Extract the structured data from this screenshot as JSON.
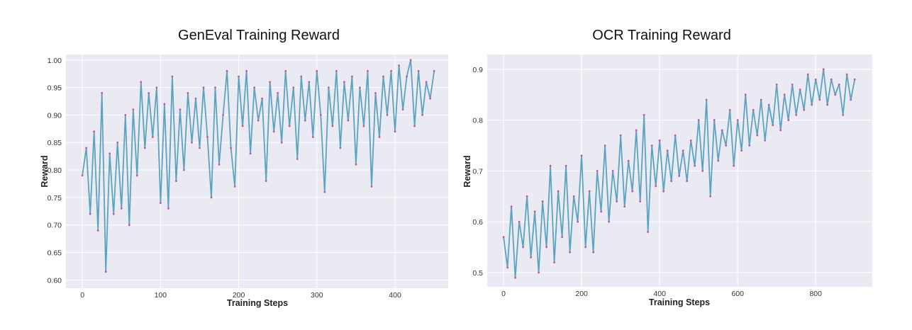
{
  "chart_data": [
    {
      "type": "line",
      "title": "GenEval Training Reward",
      "xlabel": "Training Steps",
      "ylabel": "Reward",
      "xlim": [
        -21,
        468
      ],
      "ylim": [
        0.585,
        1.01
      ],
      "grid": true,
      "xticks": [
        0,
        100,
        200,
        300,
        400
      ],
      "yticks": [
        0.6,
        0.65,
        0.7,
        0.75,
        0.8,
        0.85,
        0.9,
        0.95,
        1.0
      ],
      "ytick_labels": [
        "0.60",
        "0.65",
        "0.70",
        "0.75",
        "0.80",
        "0.85",
        "0.90",
        "0.95",
        "1.00"
      ],
      "line_color": "#5ba3c0",
      "marker_color": "#d0509c",
      "background": "#eaeaf2",
      "x": [
        0,
        5,
        10,
        15,
        20,
        25,
        30,
        35,
        40,
        45,
        50,
        55,
        60,
        65,
        70,
        75,
        80,
        85,
        90,
        95,
        100,
        105,
        110,
        115,
        120,
        125,
        130,
        135,
        140,
        145,
        150,
        155,
        160,
        165,
        170,
        175,
        180,
        185,
        190,
        195,
        200,
        205,
        210,
        215,
        220,
        225,
        230,
        235,
        240,
        245,
        250,
        255,
        260,
        265,
        270,
        275,
        280,
        285,
        290,
        295,
        300,
        305,
        310,
        315,
        320,
        325,
        330,
        335,
        340,
        345,
        350,
        355,
        360,
        365,
        370,
        375,
        380,
        385,
        390,
        395,
        400,
        405,
        410,
        415,
        420,
        425,
        430,
        435,
        440,
        445,
        450
      ],
      "values": [
        0.79,
        0.84,
        0.72,
        0.87,
        0.69,
        0.94,
        0.615,
        0.83,
        0.72,
        0.85,
        0.73,
        0.9,
        0.7,
        0.91,
        0.79,
        0.96,
        0.84,
        0.94,
        0.86,
        0.95,
        0.74,
        0.92,
        0.73,
        0.97,
        0.78,
        0.91,
        0.8,
        0.94,
        0.85,
        0.93,
        0.84,
        0.95,
        0.86,
        0.75,
        0.95,
        0.81,
        0.9,
        0.98,
        0.84,
        0.77,
        0.97,
        0.88,
        0.98,
        0.83,
        0.95,
        0.89,
        0.93,
        0.78,
        0.96,
        0.87,
        0.94,
        0.85,
        0.98,
        0.88,
        0.95,
        0.82,
        0.97,
        0.89,
        0.96,
        0.86,
        0.98,
        0.9,
        0.76,
        0.95,
        0.88,
        0.98,
        0.84,
        0.96,
        0.89,
        0.97,
        0.81,
        0.95,
        0.88,
        0.98,
        0.77,
        0.94,
        0.86,
        0.97,
        0.9,
        0.98,
        0.87,
        0.99,
        0.91,
        0.97,
        1.0,
        0.88,
        0.98,
        0.9,
        0.96,
        0.93,
        0.98
      ]
    },
    {
      "type": "line",
      "title": "OCR Training Reward",
      "xlabel": "Training Steps",
      "ylabel": "Reward",
      "xlim": [
        -42,
        945
      ],
      "ylim": [
        0.472,
        0.929
      ],
      "grid": true,
      "xticks": [
        0,
        200,
        400,
        600,
        800
      ],
      "yticks": [
        0.5,
        0.6,
        0.7,
        0.8,
        0.9
      ],
      "ytick_labels": [
        "0.5",
        "0.6",
        "0.7",
        "0.8",
        "0.9"
      ],
      "line_color": "#5ba3c0",
      "marker_color": "#d0509c",
      "background": "#eaeaf2",
      "x": [
        0,
        10,
        20,
        30,
        40,
        50,
        60,
        70,
        80,
        90,
        100,
        110,
        120,
        130,
        140,
        150,
        160,
        170,
        180,
        190,
        200,
        210,
        220,
        230,
        240,
        250,
        260,
        270,
        280,
        290,
        300,
        310,
        320,
        330,
        340,
        350,
        360,
        370,
        380,
        390,
        400,
        410,
        420,
        430,
        440,
        450,
        460,
        470,
        480,
        490,
        500,
        510,
        520,
        530,
        540,
        550,
        560,
        570,
        580,
        590,
        600,
        610,
        620,
        630,
        640,
        650,
        660,
        670,
        680,
        690,
        700,
        710,
        720,
        730,
        740,
        750,
        760,
        770,
        780,
        790,
        800,
        810,
        820,
        830,
        840,
        850,
        860,
        870,
        880,
        890,
        900
      ],
      "values": [
        0.57,
        0.51,
        0.63,
        0.49,
        0.6,
        0.55,
        0.65,
        0.53,
        0.62,
        0.5,
        0.64,
        0.55,
        0.71,
        0.52,
        0.66,
        0.57,
        0.71,
        0.54,
        0.65,
        0.6,
        0.73,
        0.55,
        0.66,
        0.54,
        0.7,
        0.62,
        0.75,
        0.6,
        0.7,
        0.64,
        0.77,
        0.63,
        0.72,
        0.66,
        0.78,
        0.64,
        0.81,
        0.58,
        0.75,
        0.67,
        0.76,
        0.66,
        0.74,
        0.68,
        0.77,
        0.69,
        0.74,
        0.68,
        0.76,
        0.71,
        0.8,
        0.7,
        0.84,
        0.65,
        0.8,
        0.72,
        0.78,
        0.75,
        0.82,
        0.71,
        0.8,
        0.74,
        0.85,
        0.75,
        0.82,
        0.77,
        0.84,
        0.76,
        0.83,
        0.79,
        0.87,
        0.78,
        0.85,
        0.8,
        0.87,
        0.81,
        0.86,
        0.82,
        0.89,
        0.83,
        0.88,
        0.84,
        0.9,
        0.83,
        0.88,
        0.85,
        0.87,
        0.81,
        0.89,
        0.84,
        0.88
      ]
    }
  ]
}
